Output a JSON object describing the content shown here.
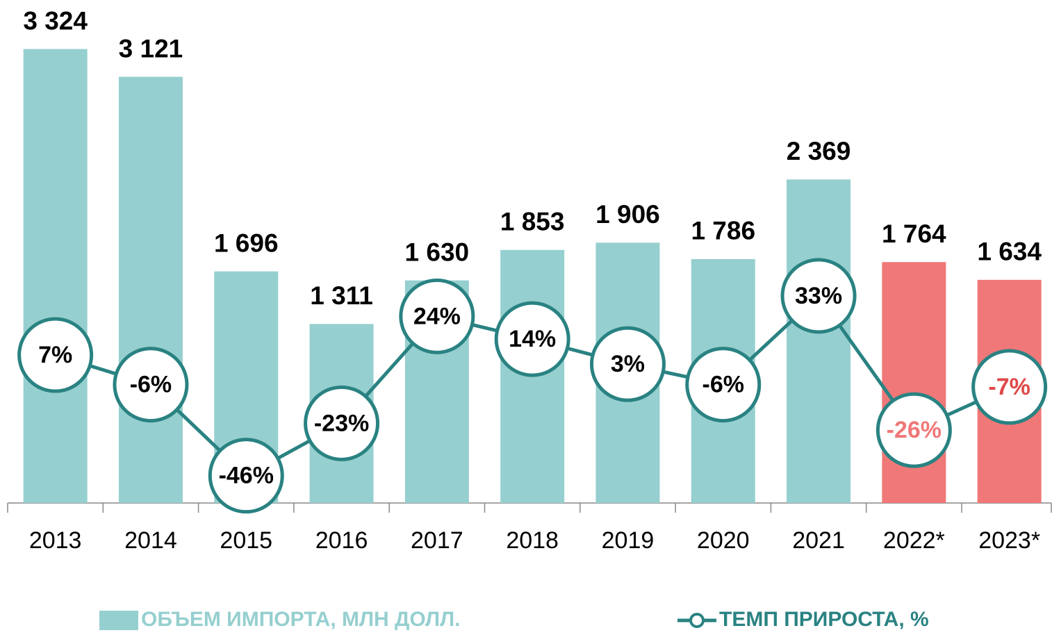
{
  "chart_data": {
    "type": "bar",
    "categories": [
      "2013",
      "2014",
      "2015",
      "2016",
      "2017",
      "2018",
      "2019",
      "2020",
      "2021",
      "2022*",
      "2023*"
    ],
    "ylim": [
      0,
      3500
    ],
    "y2lim": [
      -58,
      152
    ],
    "legend": "bottom",
    "series": [
      {
        "name": "ОБЪЕМ ИМПОРТА, МЛН ДОЛЛ.",
        "type": "bar",
        "color": "#96cfcf",
        "colors": [
          "#96cfcf",
          "#96cfcf",
          "#96cfcf",
          "#96cfcf",
          "#96cfcf",
          "#96cfcf",
          "#96cfcf",
          "#96cfcf",
          "#96cfcf",
          "#f07878",
          "#f07878"
        ],
        "values": [
          3324,
          3121,
          1696,
          1311,
          1630,
          1853,
          1906,
          1786,
          2369,
          1764,
          1634
        ],
        "value_labels": [
          "3 324",
          "3 121",
          "1 696",
          "1 311",
          "1 630",
          "1 853",
          "1 906",
          "1 786",
          "2 369",
          "1 764",
          "1 634"
        ]
      },
      {
        "name": "ТЕМП ПРИРОСТА, %",
        "type": "line",
        "axis": "y2",
        "color": "#2a8282",
        "values": [
          7,
          -6,
          -46,
          -23,
          24,
          14,
          3,
          -6,
          33,
          -26,
          -7
        ],
        "value_labels": [
          "7%",
          "-6%",
          "-46%",
          "-23%",
          "24%",
          "14%",
          "3%",
          "-6%",
          "33%",
          "-26%",
          "-7%"
        ],
        "label_colors": [
          "#000000",
          "#000000",
          "#000000",
          "#000000",
          "#000000",
          "#000000",
          "#000000",
          "#000000",
          "#000000",
          "#f07878",
          "#e04848"
        ]
      }
    ]
  }
}
